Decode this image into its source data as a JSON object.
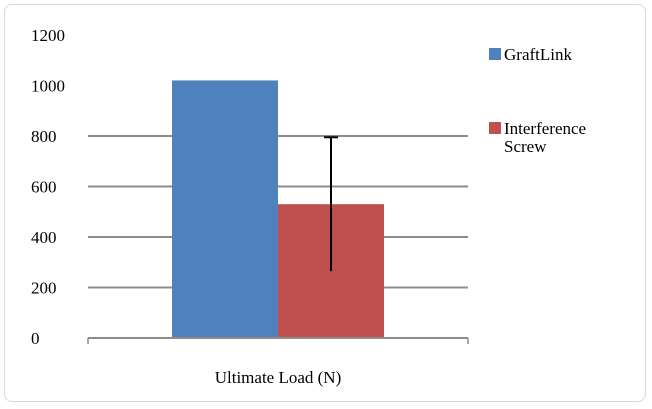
{
  "chart_data": {
    "type": "bar",
    "categories": [
      "Ultimate Load (N)"
    ],
    "series": [
      {
        "name": "GraftLink",
        "values": [
          1020
        ],
        "color": "#4f81bd",
        "error": null
      },
      {
        "name": "Interference Screw",
        "values": [
          530
        ],
        "color": "#c0504d",
        "error": [
          265,
          795
        ]
      }
    ],
    "title": "",
    "xlabel": "",
    "ylabel": "",
    "ylim": [
      0,
      1200
    ],
    "yticks": [
      0,
      200,
      400,
      600,
      800,
      1000,
      1200
    ],
    "grid": true,
    "legend": "right"
  }
}
